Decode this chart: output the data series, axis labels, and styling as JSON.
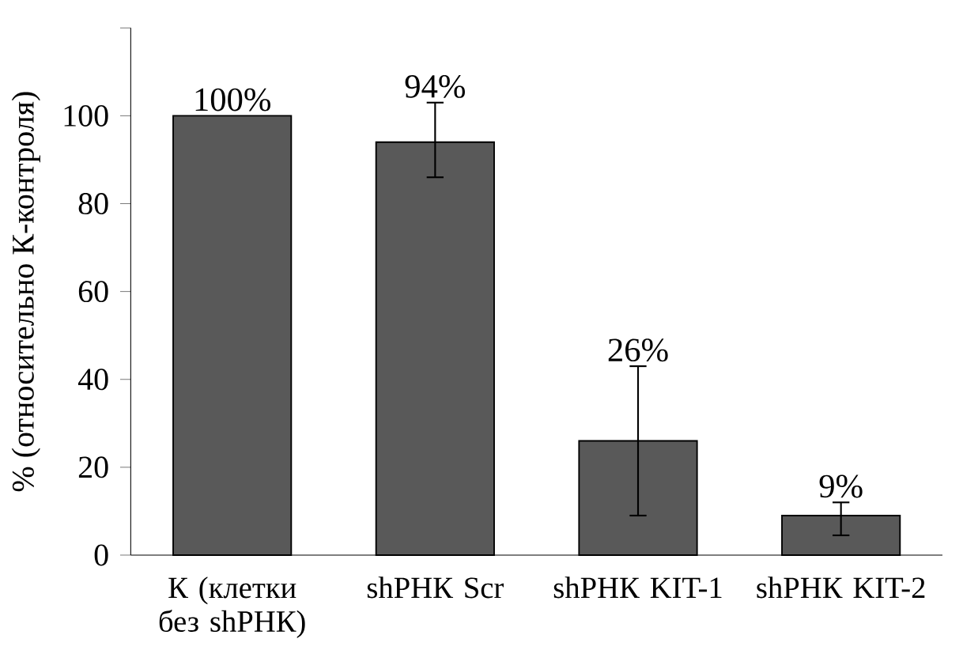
{
  "chart_data": {
    "type": "bar",
    "ylabel": "% (относительно К-контроля)",
    "categories": [
      "К (клетки без shРНК)",
      "shРНК Scr",
      "shРНК KIT-1",
      "shРНК KIT-2"
    ],
    "values": [
      100,
      94,
      26,
      9
    ],
    "value_labels": [
      "100%",
      "94%",
      "26%",
      "9%"
    ],
    "errors": [
      null,
      [
        86,
        103
      ],
      [
        9,
        43
      ],
      [
        4.5,
        12
      ]
    ],
    "color": "#595959",
    "ylim": [
      0,
      120
    ],
    "yticks": [
      0,
      20,
      40,
      60,
      80,
      100,
      {
        "value": 120,
        "label": null
      }
    ],
    "grid": false
  }
}
